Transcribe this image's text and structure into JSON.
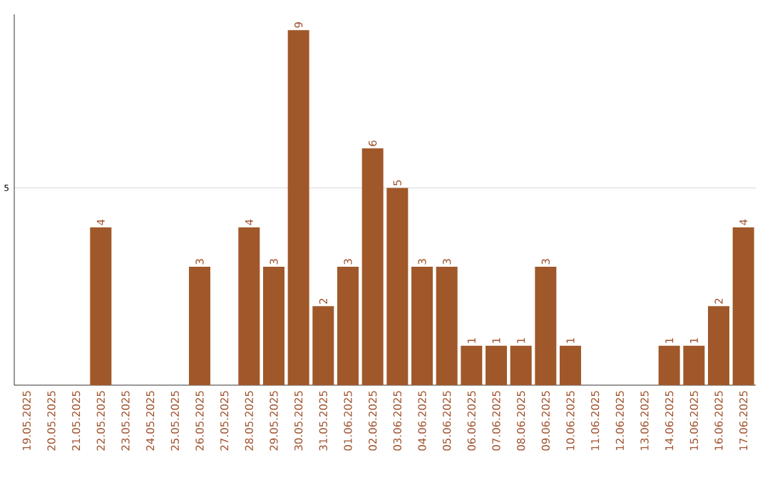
{
  "chart_data": {
    "type": "bar",
    "categories": [
      "19.05.2025",
      "20.05.2025",
      "21.05.2025",
      "22.05.2025",
      "23.05.2025",
      "24.05.2025",
      "25.05.2025",
      "26.05.2025",
      "27.05.2025",
      "28.05.2025",
      "29.05.2025",
      "30.05.2025",
      "31.05.2025",
      "01.06.2025",
      "02.06.2025",
      "03.06.2025",
      "04.06.2025",
      "05.06.2025",
      "06.06.2025",
      "07.06.2025",
      "08.06.2025",
      "09.06.2025",
      "10.06.2025",
      "11.06.2025",
      "12.06.2025",
      "13.06.2025",
      "14.06.2025",
      "15.06.2025",
      "16.06.2025",
      "17.06.2025"
    ],
    "values": [
      0,
      0,
      0,
      4,
      0,
      0,
      0,
      3,
      0,
      4,
      3,
      9,
      2,
      3,
      6,
      5,
      3,
      3,
      1,
      1,
      1,
      3,
      1,
      0,
      0,
      0,
      1,
      1,
      2,
      4
    ],
    "value_labels": [
      null,
      null,
      null,
      "4",
      null,
      null,
      null,
      "3",
      null,
      "4",
      "3",
      "9",
      "2",
      "3",
      "6",
      "5",
      "3",
      "3",
      "1",
      "1",
      "1",
      "3",
      "1",
      null,
      null,
      null,
      "1",
      "1",
      "2",
      "4"
    ],
    "color": "#a0582a",
    "ylim": [
      0,
      9.4
    ],
    "yticks": [
      5
    ],
    "grid": "y"
  }
}
